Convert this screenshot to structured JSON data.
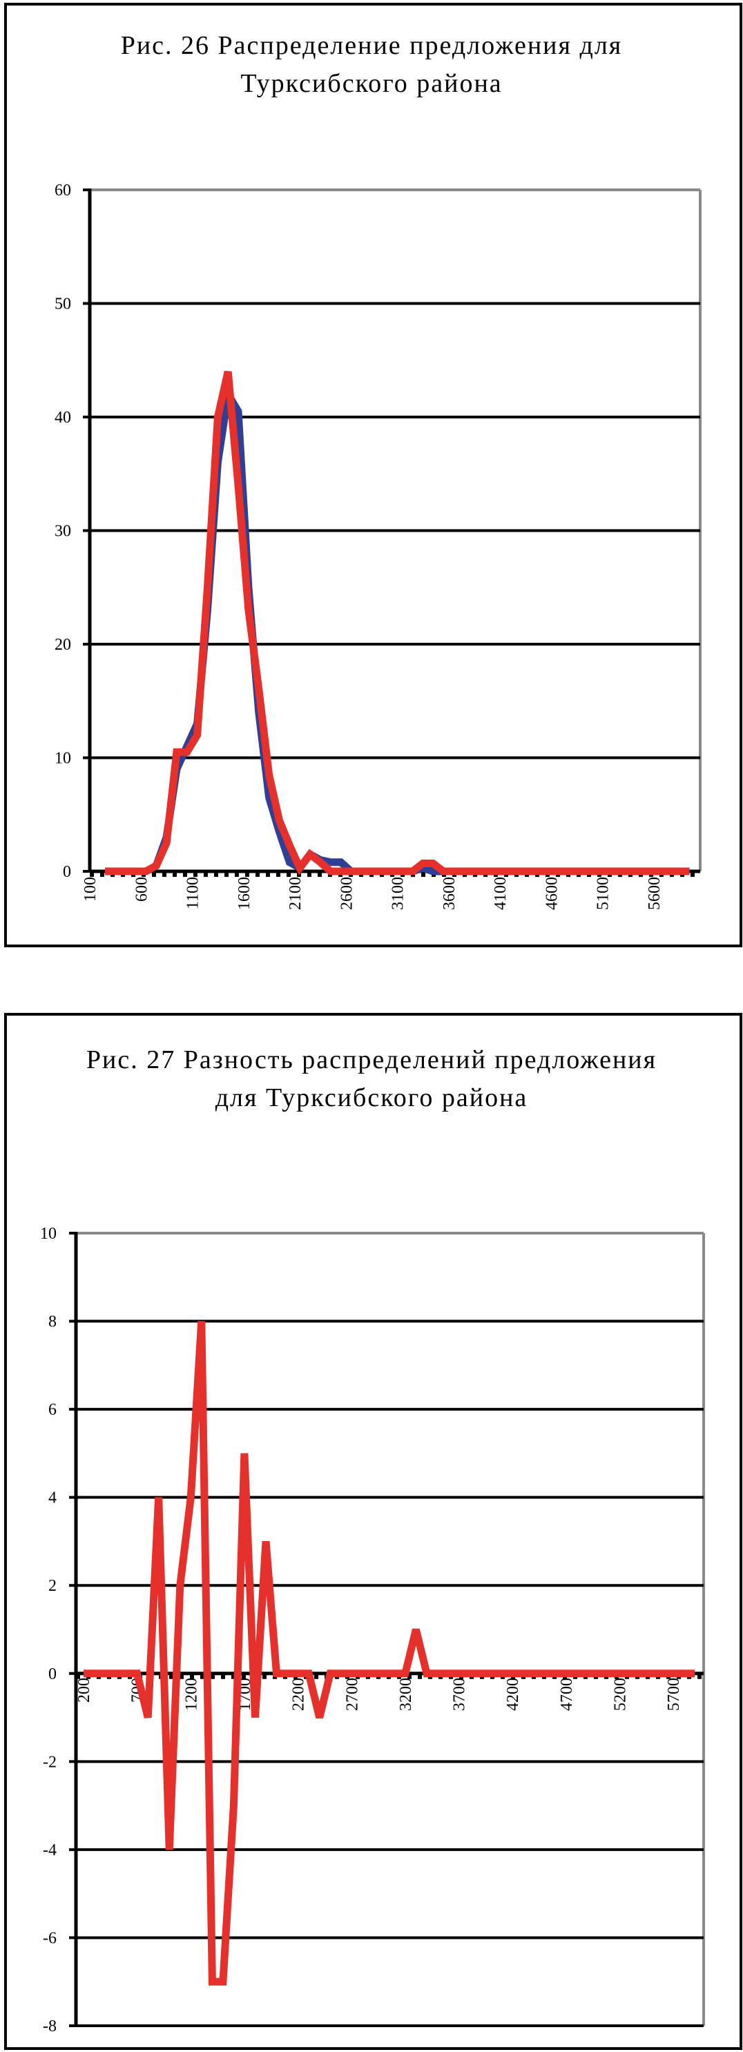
{
  "chart_data": [
    {
      "type": "line",
      "title_line1": "Рис. 26 Распределение предложения для",
      "title_line2": "Турксибского района",
      "xlabel": "",
      "ylabel": "",
      "ylim": [
        0,
        60
      ],
      "yticks": [
        "0",
        "10",
        "20",
        "30",
        "40",
        "50",
        "60"
      ],
      "xticks": [
        "100",
        "600",
        "1100",
        "1600",
        "2100",
        "2600",
        "3100",
        "3600",
        "4100",
        "4600",
        "5100",
        "5600"
      ],
      "x_start": 200,
      "x_step": 100,
      "grid": true,
      "legend": "none",
      "series": [
        {
          "name": "blue",
          "color": "#2e3f95",
          "values": [
            0,
            0,
            0,
            0,
            0,
            0.5,
            3,
            9,
            11,
            13,
            23,
            36,
            42,
            40.5,
            25,
            14,
            6.5,
            3.5,
            0.8,
            0.3,
            1.5,
            1,
            0.8,
            0.8,
            0,
            0,
            0,
            0,
            0,
            0,
            0,
            0.3,
            0,
            0,
            0,
            0,
            0,
            0,
            0,
            0,
            0,
            0,
            0,
            0,
            0,
            0,
            0,
            0,
            0,
            0,
            0,
            0,
            0,
            0,
            0,
            0,
            0,
            0
          ]
        },
        {
          "name": "red",
          "color": "#e5302c",
          "values": [
            0,
            0,
            0,
            0,
            0,
            0.5,
            2.5,
            10.5,
            10.5,
            12,
            25,
            40,
            44,
            34,
            23,
            16,
            8.5,
            4.5,
            2.3,
            0.3,
            1.5,
            0.8,
            0,
            0,
            0,
            0,
            0,
            0,
            0,
            0,
            0,
            0.7,
            0.7,
            0,
            0,
            0,
            0,
            0,
            0,
            0,
            0,
            0,
            0,
            0,
            0,
            0,
            0,
            0,
            0,
            0,
            0,
            0,
            0,
            0,
            0,
            0,
            0,
            0
          ]
        }
      ]
    },
    {
      "type": "line",
      "title_line1": "Рис. 27 Разность распределений предложения",
      "title_line2": "для  Турксибского района",
      "xlabel": "",
      "ylabel": "",
      "ylim": [
        -8,
        10
      ],
      "yticks": [
        "-8",
        "-6",
        "-4",
        "-2",
        "0",
        "2",
        "4",
        "6",
        "8",
        "10"
      ],
      "xticks": [
        "200",
        "700",
        "1200",
        "1700",
        "2200",
        "2700",
        "3200",
        "3700",
        "4200",
        "4700",
        "5200",
        "5700"
      ],
      "x_start": 200,
      "x_step": 100,
      "grid": true,
      "legend": "none",
      "series": [
        {
          "name": "difference",
          "color": "#e5302c",
          "values": [
            0,
            0,
            0,
            0,
            0,
            0,
            -1,
            4,
            -4,
            2,
            4,
            8,
            -7,
            -7,
            -3,
            5,
            -1,
            3,
            0,
            0,
            0,
            0,
            -1,
            0,
            0,
            0,
            0,
            0,
            0,
            0,
            0,
            1,
            0,
            0,
            0,
            0,
            0,
            0,
            0,
            0,
            0,
            0,
            0,
            0,
            0,
            0,
            0,
            0,
            0,
            0,
            0,
            0,
            0,
            0,
            0,
            0,
            0,
            0
          ]
        }
      ]
    }
  ]
}
